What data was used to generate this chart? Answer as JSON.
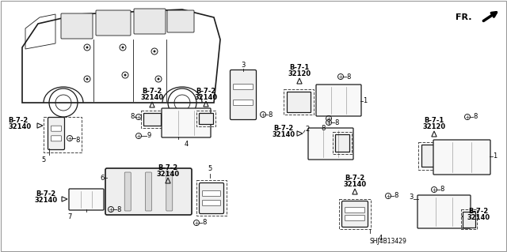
{
  "bg_color": "#ffffff",
  "diagram_code": "SHJ4B13429",
  "fr_label": "FR.",
  "part_labels": {
    "b72": "B-7-2\n32140",
    "b71": "B-7-1\n32120"
  },
  "colors": {
    "text": "#000000",
    "line": "#1a1a1a",
    "dash": "#444444"
  },
  "font_bold": true,
  "lw_thin": 0.6,
  "lw_med": 0.9,
  "lw_thick": 1.2,
  "fs_label": 6.0,
  "fs_item": 6.0,
  "fs_code": 5.5
}
